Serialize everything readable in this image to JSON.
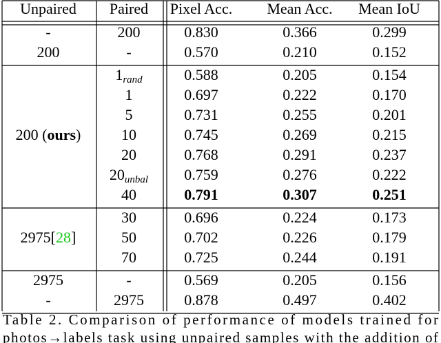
{
  "table": {
    "header": [
      "Unpaired",
      "Paired",
      "Pixel Acc.",
      "Mean Acc.",
      "Mean IoU"
    ],
    "groups": [
      {
        "unpaired": "-",
        "rows": [
          {
            "paired": "200",
            "values": [
              "0.830",
              "0.366",
              "0.299"
            ]
          }
        ]
      },
      {
        "unpaired": "200",
        "rows": [
          {
            "paired": "-",
            "values": [
              "0.570",
              "0.210",
              "0.152"
            ]
          }
        ]
      },
      {
        "unpaired": [
          {
            "text": "200 ("
          },
          {
            "text": "ours",
            "style": "bold"
          },
          {
            "text": ")"
          }
        ],
        "rows": [
          {
            "paired": [
              {
                "text": "1"
              },
              {
                "text": "rand",
                "style": "sub"
              }
            ],
            "values": [
              "0.588",
              "0.205",
              "0.154"
            ]
          },
          {
            "paired": "1",
            "values": [
              "0.697",
              "0.222",
              "0.170"
            ]
          },
          {
            "paired": "5",
            "values": [
              "0.731",
              "0.255",
              "0.201"
            ]
          },
          {
            "paired": "10",
            "values": [
              "0.745",
              "0.269",
              "0.215"
            ]
          },
          {
            "paired": "20",
            "values": [
              "0.768",
              "0.291",
              "0.237"
            ]
          },
          {
            "paired": [
              {
                "text": "20"
              },
              {
                "text": "unbal",
                "style": "sub"
              }
            ],
            "values": [
              "0.759",
              "0.276",
              "0.222"
            ]
          },
          {
            "paired": "40",
            "values": [
              "0.791",
              "0.307",
              "0.251"
            ],
            "bold": true
          }
        ]
      },
      {
        "unpaired": [
          {
            "text": "2975["
          },
          {
            "text": "28",
            "style": "cite"
          },
          {
            "text": "]"
          }
        ],
        "rows": [
          {
            "paired": "30",
            "values": [
              "0.696",
              "0.224",
              "0.173"
            ]
          },
          {
            "paired": "50",
            "values": [
              "0.702",
              "0.226",
              "0.179"
            ]
          },
          {
            "paired": "70",
            "values": [
              "0.725",
              "0.244",
              "0.191"
            ]
          }
        ]
      },
      {
        "unpaired": "2975",
        "rows": [
          {
            "paired": "-",
            "values": [
              "0.569",
              "0.205",
              "0.156"
            ]
          }
        ]
      },
      {
        "unpaired": "-",
        "rows": [
          {
            "paired": "2975",
            "values": [
              "0.878",
              "0.497",
              "0.402"
            ]
          }
        ]
      }
    ]
  },
  "caption": [
    "Table 2. Comparison of performance of models trained for",
    "photos→labels task using unpaired samples with the addition of"
  ]
}
